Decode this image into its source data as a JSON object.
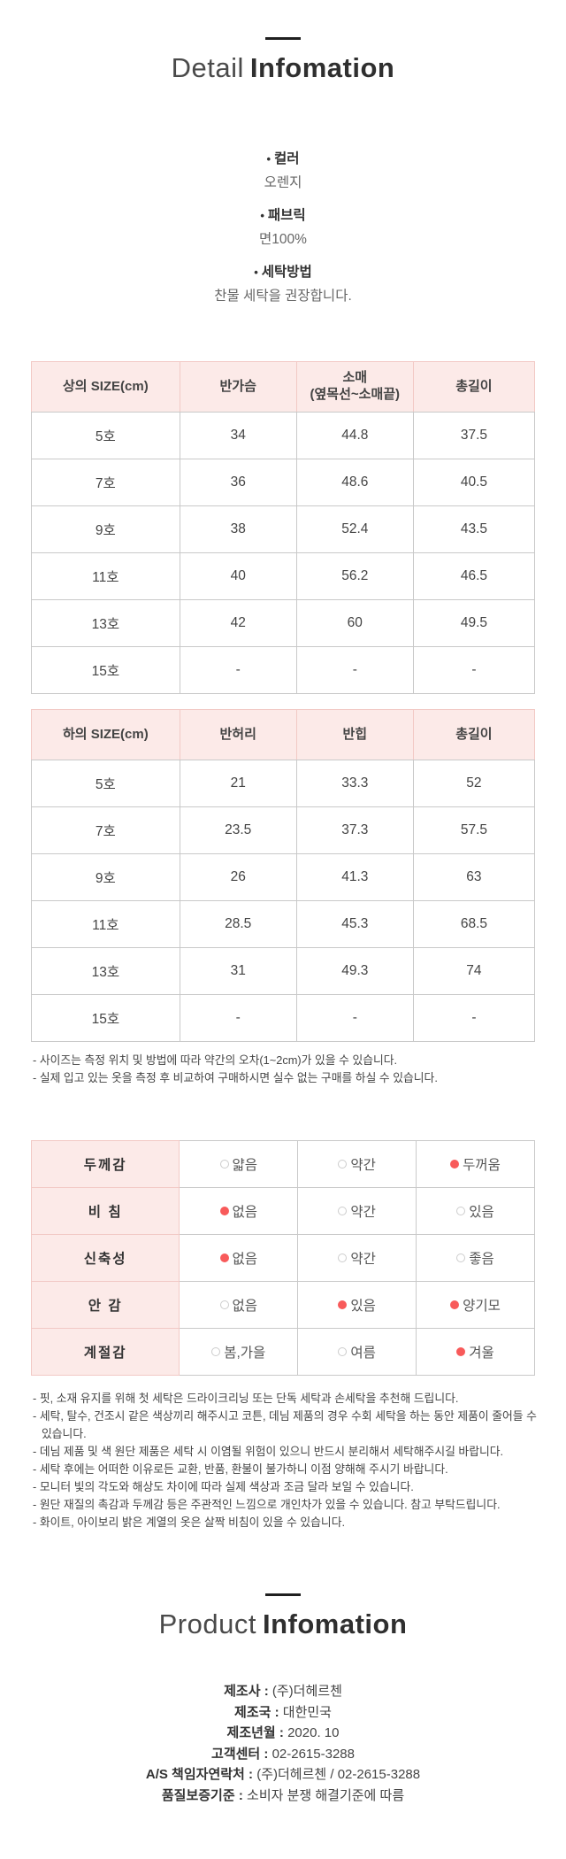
{
  "colors": {
    "header_pink_bg": "#fceae8",
    "pink_border": "#f2c9c5",
    "gray_border": "#c9c9c9",
    "selected_radio_red": "#f85a5a",
    "title_dark": "#2f2f2f"
  },
  "detail": {
    "title_light": "Detail",
    "title_bold": "Infomation",
    "bullet_char": "•",
    "bullets": [
      {
        "label": "컬러",
        "value": "오렌지"
      },
      {
        "label": "패브릭",
        "value": "면100%"
      },
      {
        "label": "세탁방법",
        "value": "찬물 세탁을 권장합니다."
      }
    ]
  },
  "size_tables": [
    {
      "headers": [
        "상의 SIZE(cm)",
        "반가슴",
        "소매\n(옆목선~소매끝)",
        "총길이"
      ],
      "rows": [
        [
          "5호",
          "34",
          "44.8",
          "37.5"
        ],
        [
          "7호",
          "36",
          "48.6",
          "40.5"
        ],
        [
          "9호",
          "38",
          "52.4",
          "43.5"
        ],
        [
          "11호",
          "40",
          "56.2",
          "46.5"
        ],
        [
          "13호",
          "42",
          "60",
          "49.5"
        ],
        [
          "15호",
          "-",
          "-",
          "-"
        ]
      ]
    },
    {
      "headers": [
        "하의 SIZE(cm)",
        "반허리",
        "반힙",
        "총길이"
      ],
      "rows": [
        [
          "5호",
          "21",
          "33.3",
          "52"
        ],
        [
          "7호",
          "23.5",
          "37.3",
          "57.5"
        ],
        [
          "9호",
          "26",
          "41.3",
          "63"
        ],
        [
          "11호",
          "28.5",
          "45.3",
          "68.5"
        ],
        [
          "13호",
          "31",
          "49.3",
          "74"
        ],
        [
          "15호",
          "-",
          "-",
          "-"
        ]
      ]
    }
  ],
  "size_notes": [
    "- 사이즈는 측정 위치 및 방법에 따라 약간의 오차(1~2cm)가 있을 수 있습니다.",
    "- 실제 입고 있는 옷을 측정 후 비교하여 구매하시면 실수 없는 구매를 하실 수 있습니다."
  ],
  "attributes": {
    "rows": [
      {
        "label": "두께감",
        "options": [
          {
            "text": "얇음",
            "selected": false
          },
          {
            "text": "약간",
            "selected": false
          },
          {
            "text": "두꺼움",
            "selected": true
          }
        ]
      },
      {
        "label": "비 침",
        "options": [
          {
            "text": "없음",
            "selected": true
          },
          {
            "text": "약간",
            "selected": false
          },
          {
            "text": "있음",
            "selected": false
          }
        ]
      },
      {
        "label": "신축성",
        "options": [
          {
            "text": "없음",
            "selected": true
          },
          {
            "text": "약간",
            "selected": false
          },
          {
            "text": "좋음",
            "selected": false
          }
        ]
      },
      {
        "label": "안 감",
        "options": [
          {
            "text": "없음",
            "selected": false
          },
          {
            "text": "있음",
            "selected": true
          },
          {
            "text": "양기모",
            "selected": true
          }
        ]
      },
      {
        "label": "계절감",
        "options": [
          {
            "text": "봄,가을",
            "selected": false
          },
          {
            "text": "여름",
            "selected": false
          },
          {
            "text": "겨울",
            "selected": true
          }
        ]
      }
    ]
  },
  "care_notes": [
    "- 핏, 소재 유지를 위해 첫 세탁은 드라이크리닝 또는 단독 세탁과 손세탁을 추천해 드립니다.",
    "- 세탁, 탈수, 건조시 같은 색상끼리 해주시고 코튼, 데님 제품의 경우 수회 세탁을 하는 동안 제품이 줄어들 수 있습니다.",
    "- 데님 제품 및 색 원단 제품은 세탁 시 이염될 위험이 있으니 반드시 분리해서 세탁해주시길 바랍니다.",
    "- 세탁 후에는 어떠한 이유로든 교환, 반품, 환불이 불가하니 이점 양해해 주시기 바랍니다.",
    "- 모니터 빛의 각도와 해상도 차이에 따라 실제 색상과 조금 달라 보일 수 있습니다.",
    "- 원단 재질의 촉감과 두께감 등은 주관적인 느낌으로 개인차가 있을 수 있습니다. 참고 부탁드립니다.",
    "- 화이트, 아이보리 밝은 계열의 옷은 살짝 비침이 있을 수 있습니다."
  ],
  "product": {
    "title_light": "Product",
    "title_bold": "Infomation",
    "separator": " : ",
    "fields": [
      {
        "label": "제조사",
        "value": "(주)더헤르첸"
      },
      {
        "label": "제조국",
        "value": "대한민국"
      },
      {
        "label": "제조년월",
        "value": "2020. 10"
      },
      {
        "label": "고객센터",
        "value": "02-2615-3288"
      },
      {
        "label": "A/S 책임자연락처",
        "value": "(주)더헤르첸 / 02-2615-3288"
      },
      {
        "label": "품질보증기준",
        "value": "소비자 분쟁 해결기준에 따름"
      }
    ]
  }
}
